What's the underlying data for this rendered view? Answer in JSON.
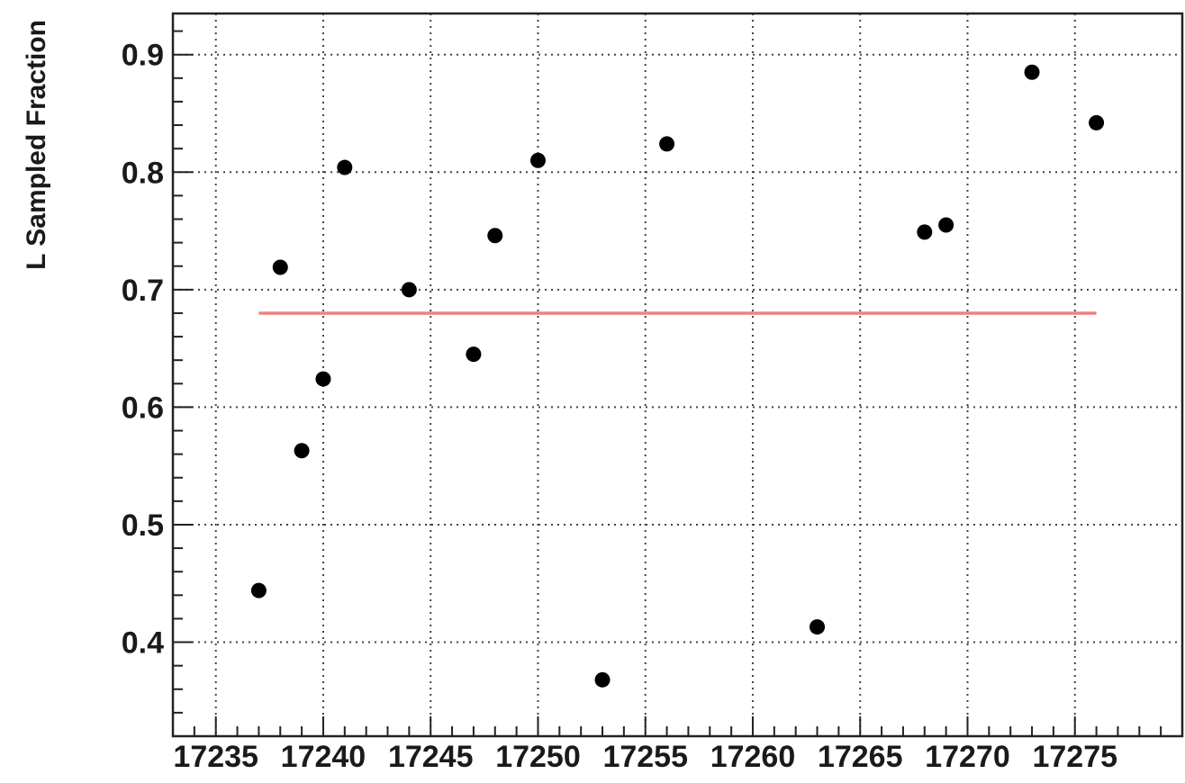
{
  "chart_data": {
    "type": "scatter",
    "title": "",
    "xlabel": "",
    "ylabel": "L Sampled Fraction",
    "xlim": [
      17233,
      17280
    ],
    "ylim": [
      0.32,
      0.935
    ],
    "grid": true,
    "x_ticks": [
      17235,
      17240,
      17245,
      17250,
      17255,
      17260,
      17265,
      17270,
      17275
    ],
    "y_ticks": [
      0.4,
      0.5,
      0.6,
      0.7,
      0.8,
      0.9
    ],
    "x_tick_labels": [
      "17235",
      "17240",
      "17245",
      "17250",
      "17255",
      "17260",
      "17265",
      "17270",
      "17275"
    ],
    "y_tick_labels": [
      "0.4",
      "0.5",
      "0.6",
      "0.7",
      "0.8",
      "0.9"
    ],
    "series": [
      {
        "points": [
          {
            "x": 17237,
            "y": 0.444
          },
          {
            "x": 17238,
            "y": 0.719
          },
          {
            "x": 17239,
            "y": 0.563
          },
          {
            "x": 17240,
            "y": 0.624
          },
          {
            "x": 17241,
            "y": 0.804
          },
          {
            "x": 17244,
            "y": 0.7
          },
          {
            "x": 17247,
            "y": 0.645
          },
          {
            "x": 17248,
            "y": 0.746
          },
          {
            "x": 17250,
            "y": 0.81
          },
          {
            "x": 17253,
            "y": 0.368
          },
          {
            "x": 17256,
            "y": 0.824
          },
          {
            "x": 17263,
            "y": 0.413
          },
          {
            "x": 17268,
            "y": 0.749
          },
          {
            "x": 17269,
            "y": 0.755
          },
          {
            "x": 17273,
            "y": 0.885
          },
          {
            "x": 17276,
            "y": 0.842
          }
        ],
        "color": "#000000"
      }
    ],
    "reference_line": {
      "y": 0.68,
      "x_start": 17237,
      "x_end": 17276,
      "color": "#f08080"
    }
  }
}
